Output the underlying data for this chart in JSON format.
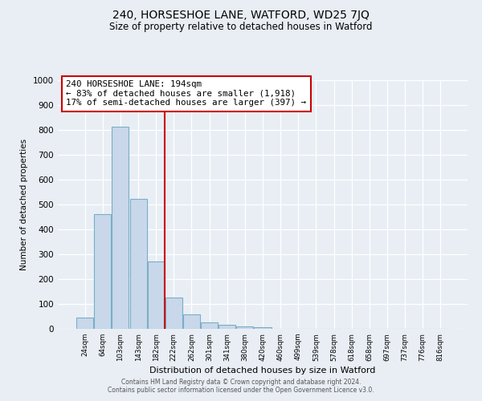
{
  "title": "240, HORSESHOE LANE, WATFORD, WD25 7JQ",
  "subtitle": "Size of property relative to detached houses in Watford",
  "xlabel": "Distribution of detached houses by size in Watford",
  "ylabel": "Number of detached properties",
  "all_labels": [
    "24sqm",
    "64sqm",
    "103sqm",
    "143sqm",
    "182sqm",
    "222sqm",
    "262sqm",
    "301sqm",
    "341sqm",
    "380sqm",
    "420sqm",
    "460sqm",
    "499sqm",
    "539sqm",
    "578sqm",
    "618sqm",
    "658sqm",
    "697sqm",
    "737sqm",
    "776sqm",
    "816sqm"
  ],
  "bar_heights": [
    44,
    460,
    812,
    522,
    272,
    125,
    57,
    25,
    15,
    10,
    5,
    0,
    0,
    0,
    0,
    0,
    0,
    0,
    0,
    0,
    0
  ],
  "bar_color": "#c8d8ea",
  "bar_edge_color": "#7aaec8",
  "vline_color": "#cc0000",
  "vline_position": 4.5,
  "annotation_title": "240 HORSESHOE LANE: 194sqm",
  "annotation_line1": "← 83% of detached houses are smaller (1,918)",
  "annotation_line2": "17% of semi-detached houses are larger (397) →",
  "annotation_box_color": "#ffffff",
  "annotation_box_edge": "#cc0000",
  "ylim": [
    0,
    1000
  ],
  "yticks": [
    0,
    100,
    200,
    300,
    400,
    500,
    600,
    700,
    800,
    900,
    1000
  ],
  "footer1": "Contains HM Land Registry data © Crown copyright and database right 2024.",
  "footer2": "Contains public sector information licensed under the Open Government Licence v3.0.",
  "bg_color": "#e8eef4"
}
